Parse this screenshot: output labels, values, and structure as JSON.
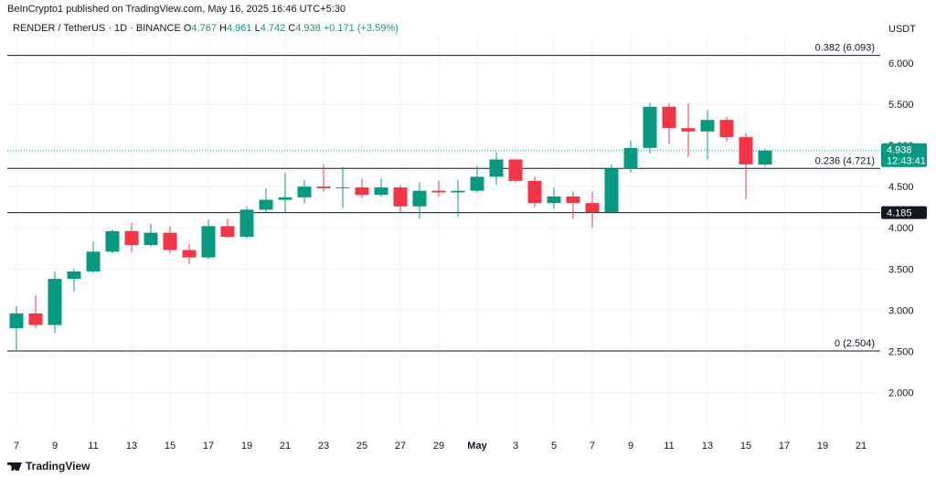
{
  "header": {
    "published": "BeInCrypto1 published on TradingView.com, May 16, 2025 16:46 UTC+5:30"
  },
  "legend": {
    "symbol": "RENDER / TetherUS · 1D · BINANCE",
    "open_label": "O",
    "open": "4.767",
    "high_label": "H",
    "high": "4.961",
    "low_label": "L",
    "low": "4.742",
    "close_label": "C",
    "close": "4.938",
    "change": "+0.171 (+3.59%)"
  },
  "price_axis": {
    "currency": "USDT"
  },
  "footer": {
    "brand": "TradingView"
  },
  "colors": {
    "up": "#089981",
    "down": "#f23645",
    "grid": "#f0f3fa",
    "text": "#131722"
  },
  "chart_data": {
    "type": "candlestick",
    "ylim": [
      1.55,
      6.3
    ],
    "y_ticks": [
      "2.000",
      "2.500",
      "3.000",
      "3.500",
      "4.000",
      "4.500",
      "5.000",
      "5.500",
      "6.000"
    ],
    "x_ticks": [
      {
        "label": "7",
        "date": "2025-04-07"
      },
      {
        "label": "9",
        "date": "2025-04-09"
      },
      {
        "label": "11",
        "date": "2025-04-11"
      },
      {
        "label": "13",
        "date": "2025-04-13"
      },
      {
        "label": "15",
        "date": "2025-04-15"
      },
      {
        "label": "17",
        "date": "2025-04-17"
      },
      {
        "label": "19",
        "date": "2025-04-19"
      },
      {
        "label": "21",
        "date": "2025-04-21"
      },
      {
        "label": "23",
        "date": "2025-04-23"
      },
      {
        "label": "25",
        "date": "2025-04-25"
      },
      {
        "label": "27",
        "date": "2025-04-27"
      },
      {
        "label": "29",
        "date": "2025-04-29"
      },
      {
        "label": "May",
        "date": "2025-05-01"
      },
      {
        "label": "3",
        "date": "2025-05-03"
      },
      {
        "label": "5",
        "date": "2025-05-05"
      },
      {
        "label": "7",
        "date": "2025-05-07"
      },
      {
        "label": "9",
        "date": "2025-05-09"
      },
      {
        "label": "11",
        "date": "2025-05-11"
      },
      {
        "label": "13",
        "date": "2025-05-13"
      },
      {
        "label": "15",
        "date": "2025-05-15"
      },
      {
        "label": "17",
        "date": "2025-05-17"
      },
      {
        "label": "19",
        "date": "2025-05-19"
      },
      {
        "label": "21",
        "date": "2025-05-21"
      }
    ],
    "candles": [
      {
        "date": "2025-04-07",
        "open": 2.78,
        "high": 3.05,
        "low": 2.5,
        "close": 2.96
      },
      {
        "date": "2025-04-08",
        "open": 2.96,
        "high": 3.18,
        "low": 2.78,
        "close": 2.82
      },
      {
        "date": "2025-04-09",
        "open": 2.82,
        "high": 3.47,
        "low": 2.72,
        "close": 3.38
      },
      {
        "date": "2025-04-10",
        "open": 3.38,
        "high": 3.5,
        "low": 3.23,
        "close": 3.47
      },
      {
        "date": "2025-04-11",
        "open": 3.47,
        "high": 3.83,
        "low": 3.45,
        "close": 3.71
      },
      {
        "date": "2025-04-12",
        "open": 3.71,
        "high": 3.98,
        "low": 3.69,
        "close": 3.96
      },
      {
        "date": "2025-04-13",
        "open": 3.96,
        "high": 4.06,
        "low": 3.7,
        "close": 3.79
      },
      {
        "date": "2025-04-14",
        "open": 3.79,
        "high": 4.05,
        "low": 3.77,
        "close": 3.94
      },
      {
        "date": "2025-04-15",
        "open": 3.94,
        "high": 4.02,
        "low": 3.69,
        "close": 3.73
      },
      {
        "date": "2025-04-16",
        "open": 3.73,
        "high": 3.8,
        "low": 3.56,
        "close": 3.64
      },
      {
        "date": "2025-04-17",
        "open": 3.64,
        "high": 4.1,
        "low": 3.62,
        "close": 4.02
      },
      {
        "date": "2025-04-18",
        "open": 4.02,
        "high": 4.11,
        "low": 3.88,
        "close": 3.89
      },
      {
        "date": "2025-04-19",
        "open": 3.89,
        "high": 4.26,
        "low": 3.87,
        "close": 4.22
      },
      {
        "date": "2025-04-20",
        "open": 4.22,
        "high": 4.48,
        "low": 4.19,
        "close": 4.34
      },
      {
        "date": "2025-04-21",
        "open": 4.34,
        "high": 4.67,
        "low": 4.19,
        "close": 4.37
      },
      {
        "date": "2025-04-22",
        "open": 4.37,
        "high": 4.58,
        "low": 4.3,
        "close": 4.5
      },
      {
        "date": "2025-04-23",
        "open": 4.5,
        "high": 4.77,
        "low": 4.44,
        "close": 4.48
      },
      {
        "date": "2025-04-24",
        "open": 4.48,
        "high": 4.74,
        "low": 4.24,
        "close": 4.49
      },
      {
        "date": "2025-04-25",
        "open": 4.49,
        "high": 4.6,
        "low": 4.36,
        "close": 4.4
      },
      {
        "date": "2025-04-26",
        "open": 4.4,
        "high": 4.6,
        "low": 4.38,
        "close": 4.49
      },
      {
        "date": "2025-04-27",
        "open": 4.49,
        "high": 4.52,
        "low": 4.19,
        "close": 4.26
      },
      {
        "date": "2025-04-28",
        "open": 4.26,
        "high": 4.55,
        "low": 4.11,
        "close": 4.45
      },
      {
        "date": "2025-04-29",
        "open": 4.45,
        "high": 4.57,
        "low": 4.38,
        "close": 4.43
      },
      {
        "date": "2025-04-30",
        "open": 4.43,
        "high": 4.58,
        "low": 4.13,
        "close": 4.45
      },
      {
        "date": "2025-05-01",
        "open": 4.45,
        "high": 4.75,
        "low": 4.43,
        "close": 4.62
      },
      {
        "date": "2025-05-02",
        "open": 4.62,
        "high": 4.92,
        "low": 4.52,
        "close": 4.83
      },
      {
        "date": "2025-05-03",
        "open": 4.83,
        "high": 4.83,
        "low": 4.55,
        "close": 4.57
      },
      {
        "date": "2025-05-04",
        "open": 4.57,
        "high": 4.62,
        "low": 4.25,
        "close": 4.3
      },
      {
        "date": "2025-05-05",
        "open": 4.3,
        "high": 4.49,
        "low": 4.23,
        "close": 4.38
      },
      {
        "date": "2025-05-06",
        "open": 4.38,
        "high": 4.44,
        "low": 4.11,
        "close": 4.3
      },
      {
        "date": "2025-05-07",
        "open": 4.3,
        "high": 4.44,
        "low": 4.0,
        "close": 4.19
      },
      {
        "date": "2025-05-08",
        "open": 4.19,
        "high": 4.77,
        "low": 4.17,
        "close": 4.72
      },
      {
        "date": "2025-05-09",
        "open": 4.72,
        "high": 5.06,
        "low": 4.67,
        "close": 4.97
      },
      {
        "date": "2025-05-10",
        "open": 4.97,
        "high": 5.52,
        "low": 4.9,
        "close": 5.47
      },
      {
        "date": "2025-05-11",
        "open": 5.47,
        "high": 5.51,
        "low": 5.02,
        "close": 5.21
      },
      {
        "date": "2025-05-12",
        "open": 5.21,
        "high": 5.51,
        "low": 4.86,
        "close": 5.17
      },
      {
        "date": "2025-05-13",
        "open": 5.17,
        "high": 5.43,
        "low": 4.83,
        "close": 5.31
      },
      {
        "date": "2025-05-14",
        "open": 5.31,
        "high": 5.35,
        "low": 5.05,
        "close": 5.1
      },
      {
        "date": "2025-05-15",
        "open": 5.1,
        "high": 5.15,
        "low": 4.35,
        "close": 4.77
      },
      {
        "date": "2025-05-16",
        "open": 4.767,
        "high": 4.961,
        "low": 4.742,
        "close": 4.938
      }
    ],
    "horizontal_levels": [
      {
        "value": 6.093,
        "label": "0.382 (6.093)"
      },
      {
        "value": 4.721,
        "label": "0.236 (4.721)"
      },
      {
        "value": 4.185,
        "label": ""
      },
      {
        "value": 2.504,
        "label": "0 (2.504)"
      }
    ],
    "price_labels": [
      {
        "value": 4.938,
        "text": "4.938",
        "subtext": "12:43:41",
        "color": "#089981"
      },
      {
        "value": 4.185,
        "text": "4.185",
        "subtext": "",
        "color": "#131722"
      }
    ],
    "current_price_line": 4.938,
    "grid": true
  }
}
